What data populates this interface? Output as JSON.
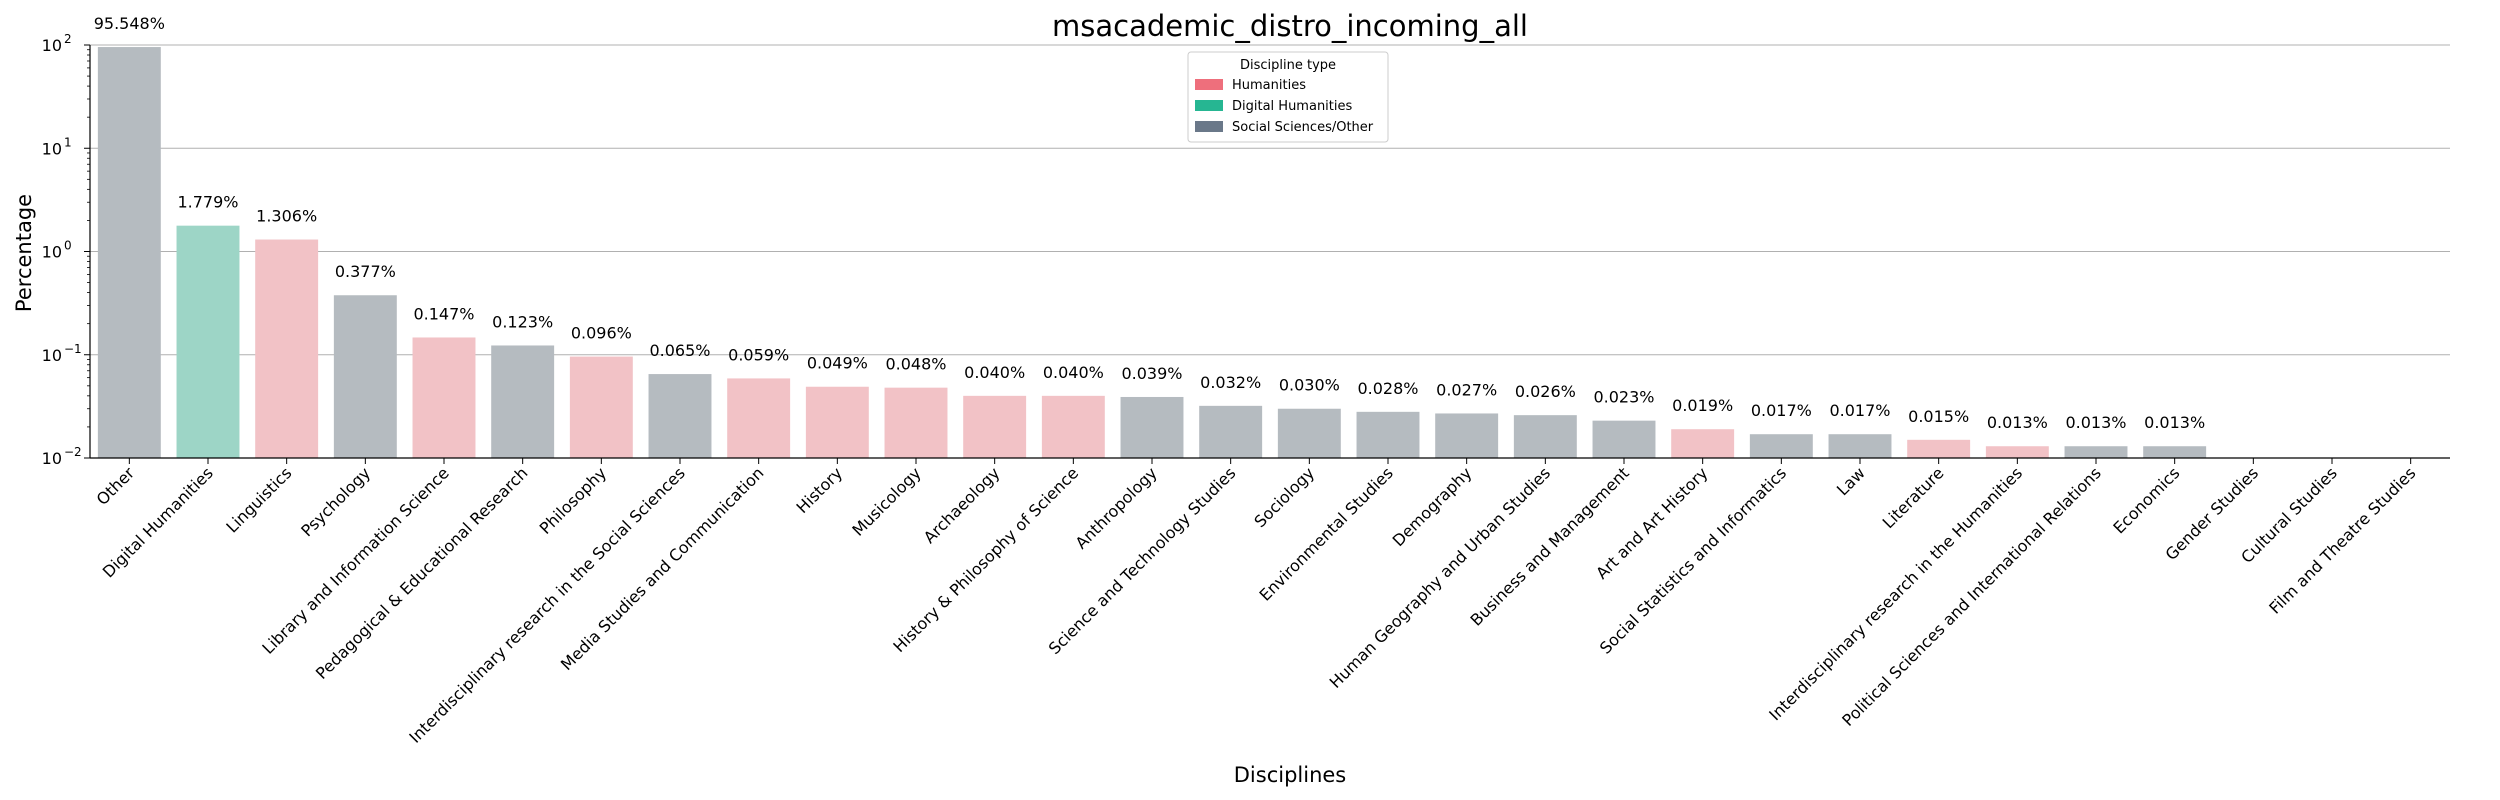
{
  "chart_data": {
    "type": "bar",
    "title": "msacademic_distro_incoming_all",
    "xlabel": "Disciplines",
    "ylabel": "Percentage",
    "yscale": "log",
    "ylim": [
      0.01,
      100
    ],
    "y_ticks": [
      {
        "value": 0.01,
        "base": "10",
        "exp": "−2"
      },
      {
        "value": 0.1,
        "base": "10",
        "exp": "−1"
      },
      {
        "value": 1,
        "base": "10",
        "exp": "0"
      },
      {
        "value": 10,
        "base": "10",
        "exp": "1"
      },
      {
        "value": 100,
        "base": "10",
        "exp": "2"
      }
    ],
    "grid": "horizontal major",
    "legend": {
      "title": "Discipline type",
      "placement": "top-center",
      "entries": [
        {
          "label": "Humanities",
          "color": "#ee6f7c"
        },
        {
          "label": "Digital Humanities",
          "color": "#26b692"
        },
        {
          "label": "Social Sciences/Other",
          "color": "#6a7889"
        }
      ]
    },
    "bar_colors": {
      "Humanities": "#f2c2c6",
      "Digital Humanities": "#9dd5c6",
      "Social Sciences/Other": "#b5bbc0"
    },
    "bars": [
      {
        "category": "Other",
        "value": 95.548,
        "label": "95.548%",
        "group": "Social Sciences/Other"
      },
      {
        "category": "Digital Humanities",
        "value": 1.779,
        "label": "1.779%",
        "group": "Digital Humanities"
      },
      {
        "category": "Linguistics",
        "value": 1.306,
        "label": "1.306%",
        "group": "Humanities"
      },
      {
        "category": "Psychology",
        "value": 0.377,
        "label": "0.377%",
        "group": "Social Sciences/Other"
      },
      {
        "category": "Library and Information Science",
        "value": 0.147,
        "label": "0.147%",
        "group": "Humanities"
      },
      {
        "category": "Pedagogical & Educational Research",
        "value": 0.123,
        "label": "0.123%",
        "group": "Social Sciences/Other"
      },
      {
        "category": "Philosophy",
        "value": 0.096,
        "label": "0.096%",
        "group": "Humanities"
      },
      {
        "category": "Interdisciplinary research in the Social Sciences",
        "value": 0.065,
        "label": "0.065%",
        "group": "Social Sciences/Other"
      },
      {
        "category": "Media Studies and Communication",
        "value": 0.059,
        "label": "0.059%",
        "group": "Humanities"
      },
      {
        "category": "History",
        "value": 0.049,
        "label": "0.049%",
        "group": "Humanities"
      },
      {
        "category": "Musicology",
        "value": 0.048,
        "label": "0.048%",
        "group": "Humanities"
      },
      {
        "category": "Archaeology",
        "value": 0.04,
        "label": "0.040%",
        "group": "Humanities"
      },
      {
        "category": "History & Philosophy of Science",
        "value": 0.04,
        "label": "0.040%",
        "group": "Humanities"
      },
      {
        "category": "Anthropology",
        "value": 0.039,
        "label": "0.039%",
        "group": "Social Sciences/Other"
      },
      {
        "category": "Science and Technology Studies",
        "value": 0.032,
        "label": "0.032%",
        "group": "Social Sciences/Other"
      },
      {
        "category": "Sociology",
        "value": 0.03,
        "label": "0.030%",
        "group": "Social Sciences/Other"
      },
      {
        "category": "Environmental Studies",
        "value": 0.028,
        "label": "0.028%",
        "group": "Social Sciences/Other"
      },
      {
        "category": "Demography",
        "value": 0.027,
        "label": "0.027%",
        "group": "Social Sciences/Other"
      },
      {
        "category": "Human Geography and Urban Studies",
        "value": 0.026,
        "label": "0.026%",
        "group": "Social Sciences/Other"
      },
      {
        "category": "Business and Management",
        "value": 0.023,
        "label": "0.023%",
        "group": "Social Sciences/Other"
      },
      {
        "category": "Art and Art History",
        "value": 0.019,
        "label": "0.019%",
        "group": "Humanities"
      },
      {
        "category": "Social Statistics and Informatics",
        "value": 0.017,
        "label": "0.017%",
        "group": "Social Sciences/Other"
      },
      {
        "category": "Law",
        "value": 0.017,
        "label": "0.017%",
        "group": "Social Sciences/Other"
      },
      {
        "category": "Literature",
        "value": 0.015,
        "label": "0.015%",
        "group": "Humanities"
      },
      {
        "category": "Interdisciplinary research in the Humanities",
        "value": 0.013,
        "label": "0.013%",
        "group": "Humanities"
      },
      {
        "category": "Political Sciences and International Relations",
        "value": 0.013,
        "label": "0.013%",
        "group": "Social Sciences/Other"
      },
      {
        "category": "Economics",
        "value": 0.013,
        "label": "0.013%",
        "group": "Social Sciences/Other"
      },
      {
        "category": "Gender Studies",
        "value": null,
        "label": "",
        "group": "Social Sciences/Other"
      },
      {
        "category": "Cultural Studies",
        "value": null,
        "label": "",
        "group": "Humanities"
      },
      {
        "category": "Film and Theatre Studies",
        "value": null,
        "label": "",
        "group": "Humanities"
      }
    ]
  }
}
